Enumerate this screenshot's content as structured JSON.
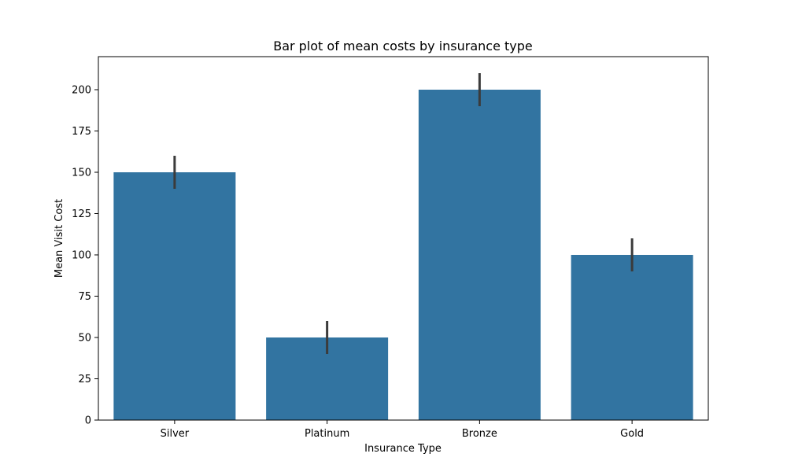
{
  "chart_data": {
    "type": "bar",
    "title": "Bar plot of mean costs by insurance type",
    "xlabel": "Insurance Type",
    "ylabel": "Mean Visit Cost",
    "categories": [
      "Silver",
      "Platinum",
      "Bronze",
      "Gold"
    ],
    "values": [
      150,
      50,
      200,
      100
    ],
    "error_low": [
      140,
      40,
      190,
      90
    ],
    "error_high": [
      160,
      60,
      210,
      110
    ],
    "ylim": [
      0,
      220
    ],
    "yticks": [
      0,
      25,
      50,
      75,
      100,
      125,
      150,
      175,
      200
    ],
    "ytick_labels": [
      "0",
      "25",
      "50",
      "75",
      "100",
      "125",
      "150",
      "175",
      "200"
    ],
    "grid": false,
    "bar_color": "#3274a1",
    "error_color": "#3b3b3b"
  }
}
